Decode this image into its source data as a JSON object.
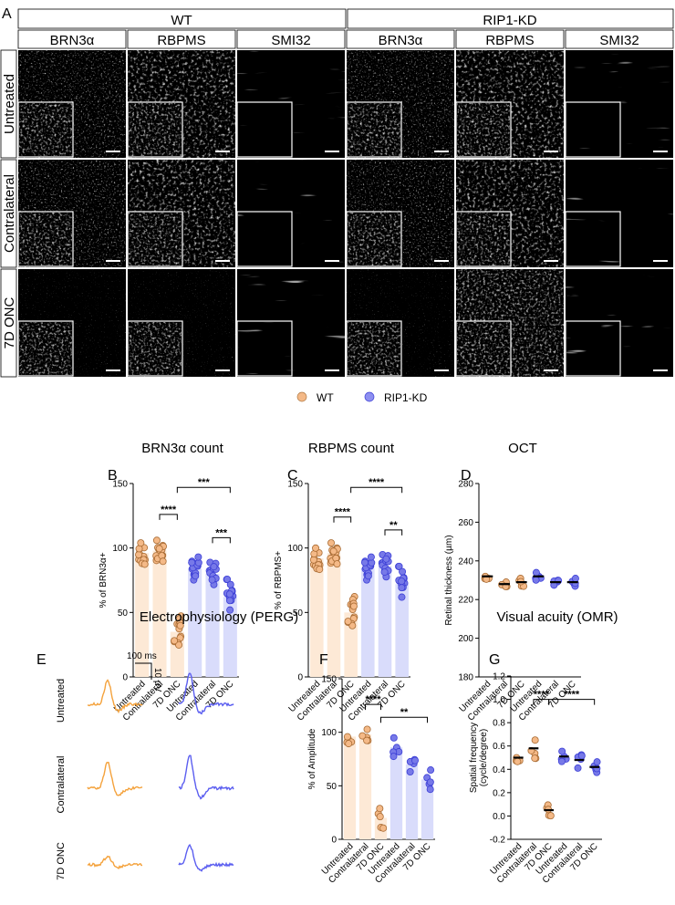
{
  "panel_letters": {
    "A": "A",
    "B": "B",
    "C": "C",
    "D": "D",
    "E": "E",
    "F": "F",
    "G": "G"
  },
  "groups": [
    "WT",
    "RIP1-KD"
  ],
  "markers": [
    "BRN3α",
    "RBPMS",
    "SMI32"
  ],
  "rows": [
    "Untreated",
    "Contralateral",
    "7D ONC"
  ],
  "legend": [
    {
      "label": "WT",
      "color": "#f4b987"
    },
    {
      "label": "RIP1-KD",
      "color": "#8d8ff0"
    }
  ],
  "colors": {
    "wt_bar": "#fde9d6",
    "kd_bar": "#d9dcfb",
    "wt_point": "#f4b987",
    "kd_point": "#7779e8",
    "kd_point_dark": "#3c3fd6",
    "wt_trace": "#f4a23c",
    "kd_trace": "#5b5ef0"
  },
  "chart_data": [
    {
      "id": "B",
      "type": "bar",
      "title": "BRN3α count",
      "ylabel": "% of BRN3α+",
      "ylim": [
        0,
        150
      ],
      "yticks": [
        0,
        50,
        100,
        150
      ],
      "categories": [
        "Untreated",
        "Contralateral",
        "7D ONC",
        "Untreated",
        "Contralateral",
        "7D ONC"
      ],
      "values": [
        96,
        98,
        35,
        84,
        80,
        62
      ],
      "sig": [
        {
          "from": 1,
          "to": 2,
          "label": "****",
          "level": 1
        },
        {
          "from": 2,
          "to": 5,
          "label": "***",
          "level": 2
        },
        {
          "from": 4,
          "to": 5,
          "label": "***",
          "level": 1
        }
      ]
    },
    {
      "id": "C",
      "type": "bar",
      "title": "RBPMS count",
      "ylabel": "% of RBPMS+",
      "ylim": [
        0,
        150
      ],
      "yticks": [
        0,
        50,
        100,
        150
      ],
      "categories": [
        "Untreated",
        "Contralateral",
        "7D ONC",
        "Untreated",
        "Contralateral",
        "7D ONC"
      ],
      "values": [
        92,
        96,
        50,
        84,
        86,
        72
      ],
      "sig": [
        {
          "from": 1,
          "to": 2,
          "label": "****",
          "level": 1
        },
        {
          "from": 2,
          "to": 5,
          "label": "****",
          "level": 2
        },
        {
          "from": 4,
          "to": 5,
          "label": "**",
          "level": 1
        }
      ]
    },
    {
      "id": "D",
      "type": "scatter",
      "title": "OCT",
      "ylabel": "Retinal thickness (µm)",
      "ylim": [
        180,
        280
      ],
      "yticks": [
        180,
        200,
        220,
        240,
        260,
        280
      ],
      "categories": [
        "Untreated",
        "Contralateral",
        "7D ONC",
        "Untreated",
        "Contralateral",
        "7D ONC"
      ],
      "values": [
        232,
        228,
        229,
        232,
        229,
        229
      ]
    },
    {
      "id": "F",
      "type": "bar",
      "title": "",
      "ylabel": "% of Amplitude",
      "ylim": [
        0,
        150
      ],
      "yticks": [
        0,
        50,
        100,
        150
      ],
      "categories": [
        "Untreated",
        "Contralateral",
        "7D ONC",
        "Untreated",
        "Contralateral",
        "7D ONC"
      ],
      "values": [
        96,
        98,
        20,
        86,
        70,
        56
      ],
      "sig": [
        {
          "from": 1,
          "to": 2,
          "label": "****",
          "level": 1
        },
        {
          "from": 2,
          "to": 5,
          "label": "**",
          "level": 1
        }
      ]
    },
    {
      "id": "G",
      "type": "scatter",
      "title": "Visual acuity (OMR)",
      "ylabel": "Spatial frequency (cycle/degree)",
      "ylim": [
        -0.2,
        1.2
      ],
      "yticks": [
        -0.2,
        0.0,
        0.2,
        0.4,
        0.6,
        0.8,
        1.0,
        1.2
      ],
      "categories": [
        "Untreated",
        "Contralateral",
        "7D ONC",
        "Untreated",
        "Contralateral",
        "7D ONC"
      ],
      "values": [
        0.5,
        0.58,
        0.05,
        0.51,
        0.48,
        0.42
      ],
      "sig": [
        {
          "from": 1,
          "to": 2,
          "label": "****",
          "level": 1
        },
        {
          "from": 2,
          "to": 5,
          "label": "****",
          "level": 1
        }
      ]
    }
  ],
  "perg": {
    "title": "Electrophysiology (PERG)",
    "rows": [
      "Untreated",
      "Contralateral",
      "7D ONC"
    ],
    "scale_time": "100 ms",
    "scale_amp": "10 µV"
  }
}
